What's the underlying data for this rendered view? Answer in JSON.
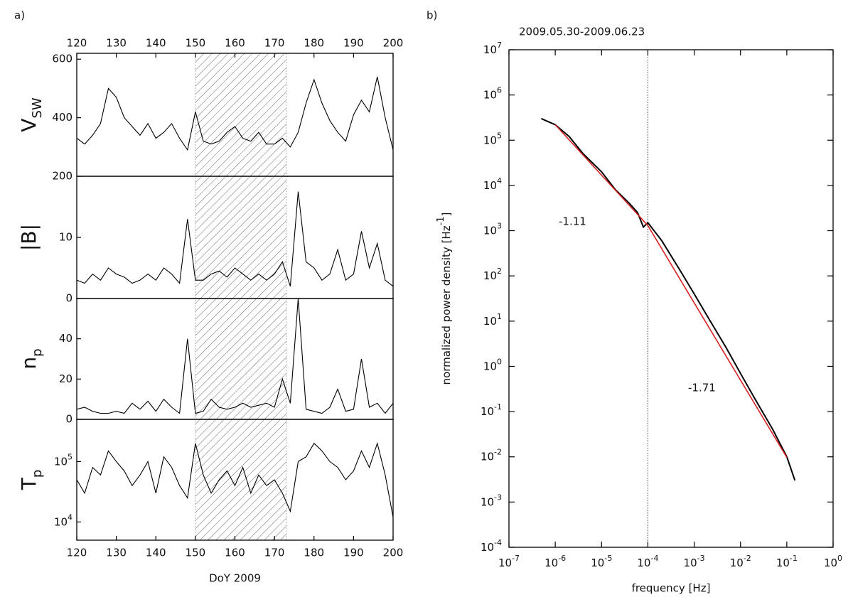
{
  "chart_data": [
    {
      "type": "line",
      "panel_label": "a)",
      "ylabel": "V",
      "ylabel_sub": "SW",
      "xtick_side": "top",
      "xlim": [
        120,
        200
      ],
      "xticks": [
        120,
        130,
        140,
        150,
        160,
        170,
        180,
        190,
        200
      ],
      "ylim": [
        200,
        620
      ],
      "yticks": [
        200,
        400,
        600
      ],
      "log_y": false,
      "span": [
        150,
        173
      ],
      "x": [
        120,
        122,
        124,
        126,
        128,
        130,
        132,
        134,
        136,
        138,
        140,
        142,
        144,
        146,
        148,
        150,
        152,
        154,
        156,
        158,
        160,
        162,
        164,
        166,
        168,
        170,
        172,
        174,
        176,
        178,
        180,
        182,
        184,
        186,
        188,
        190,
        192,
        194,
        196,
        198,
        200
      ],
      "series": [
        {
          "color": "#000000",
          "values": [
            330,
            310,
            340,
            380,
            500,
            470,
            400,
            370,
            340,
            380,
            330,
            350,
            380,
            330,
            290,
            420,
            320,
            310,
            320,
            350,
            370,
            330,
            320,
            350,
            310,
            310,
            330,
            300,
            350,
            450,
            530,
            450,
            390,
            350,
            320,
            410,
            460,
            420,
            540,
            400,
            290
          ]
        }
      ]
    },
    {
      "type": "line",
      "ylabel": "|B|",
      "xlim": [
        120,
        200
      ],
      "ylim": [
        0,
        20
      ],
      "yticks": [
        0,
        10
      ],
      "log_y": false,
      "span": [
        150,
        173
      ],
      "x": [
        120,
        122,
        124,
        126,
        128,
        130,
        132,
        134,
        136,
        138,
        140,
        142,
        144,
        146,
        148,
        150,
        152,
        154,
        156,
        158,
        160,
        162,
        164,
        166,
        168,
        170,
        172,
        174,
        176,
        178,
        180,
        182,
        184,
        186,
        188,
        190,
        192,
        194,
        196,
        198,
        200
      ],
      "series": [
        {
          "color": "#000000",
          "values": [
            3,
            2.5,
            4,
            3,
            5,
            4,
            3.5,
            2.5,
            3,
            4,
            3,
            5,
            4,
            2.5,
            13,
            3,
            3,
            4,
            4.5,
            3.5,
            5,
            4,
            3,
            4,
            3,
            4,
            6,
            2,
            17.5,
            6,
            5,
            3,
            4,
            8,
            3,
            4,
            11,
            5,
            9,
            3,
            2
          ]
        }
      ]
    },
    {
      "type": "line",
      "ylabel": "n",
      "ylabel_sub": "p",
      "xlim": [
        120,
        200
      ],
      "ylim": [
        0,
        60
      ],
      "yticks": [
        0,
        20,
        40
      ],
      "log_y": false,
      "span": [
        150,
        173
      ],
      "x": [
        120,
        122,
        124,
        126,
        128,
        130,
        132,
        134,
        136,
        138,
        140,
        142,
        144,
        146,
        148,
        150,
        152,
        154,
        156,
        158,
        160,
        162,
        164,
        166,
        168,
        170,
        172,
        174,
        176,
        178,
        180,
        182,
        184,
        186,
        188,
        190,
        192,
        194,
        196,
        198,
        200
      ],
      "series": [
        {
          "color": "#000000",
          "values": [
            5,
            6,
            4,
            3,
            3,
            4,
            3,
            8,
            5,
            9,
            4,
            10,
            6,
            3,
            40,
            3,
            4,
            10,
            6,
            5,
            6,
            8,
            6,
            7,
            8,
            6,
            20,
            8,
            60,
            5,
            4,
            3,
            6,
            15,
            4,
            5,
            30,
            6,
            8,
            3,
            8
          ]
        }
      ]
    },
    {
      "type": "line",
      "ylabel": "T",
      "ylabel_sub": "p",
      "xlabel": "DoY 2009",
      "xtick_side": "bottom",
      "xlim": [
        120,
        200
      ],
      "xticks": [
        120,
        130,
        140,
        150,
        160,
        170,
        180,
        190,
        200
      ],
      "ylim": [
        5000,
        500000
      ],
      "yticks": [
        {
          "value": 10000,
          "label": "10",
          "exp": "4"
        },
        {
          "value": 100000,
          "label": "10",
          "exp": "5"
        }
      ],
      "log_y": true,
      "span": [
        150,
        173
      ],
      "x": [
        120,
        122,
        124,
        126,
        128,
        130,
        132,
        134,
        136,
        138,
        140,
        142,
        144,
        146,
        148,
        150,
        152,
        154,
        156,
        158,
        160,
        162,
        164,
        166,
        168,
        170,
        172,
        174,
        176,
        178,
        180,
        182,
        184,
        186,
        188,
        190,
        192,
        194,
        196,
        198,
        200
      ],
      "series": [
        {
          "color": "#000000",
          "values": [
            50000,
            30000,
            80000,
            60000,
            150000,
            100000,
            70000,
            40000,
            60000,
            100000,
            30000,
            120000,
            80000,
            40000,
            25000,
            200000,
            60000,
            30000,
            50000,
            70000,
            40000,
            80000,
            30000,
            60000,
            40000,
            50000,
            30000,
            15000,
            100000,
            120000,
            200000,
            150000,
            100000,
            80000,
            50000,
            70000,
            150000,
            80000,
            200000,
            60000,
            12000
          ]
        }
      ]
    },
    {
      "type": "loglog",
      "panel_label": "b)",
      "title": "2009.05.30-2009.06.23",
      "xlabel": "frequency [Hz]",
      "ylabel": "normalized power density [Hz",
      "ylabel_sup": "-1",
      "ylabel_end": "]",
      "log_x": true,
      "log_y": true,
      "xlim": [
        1e-07,
        1
      ],
      "ylim": [
        0.0001,
        10000000.0
      ],
      "xticks": [
        {
          "value": 1e-07,
          "label": "10",
          "exp": "-7"
        },
        {
          "value": 1e-06,
          "label": "10",
          "exp": "-6"
        },
        {
          "value": 1e-05,
          "label": "10",
          "exp": "-5"
        },
        {
          "value": 0.0001,
          "label": "10",
          "exp": "-4"
        },
        {
          "value": 0.001,
          "label": "10",
          "exp": "-3"
        },
        {
          "value": 0.01,
          "label": "10",
          "exp": "-2"
        },
        {
          "value": 0.1,
          "label": "10",
          "exp": "-1"
        },
        {
          "value": 1,
          "label": "10",
          "exp": "0"
        }
      ],
      "yticks": [
        {
          "value": 0.0001,
          "label": "10",
          "exp": "-4"
        },
        {
          "value": 0.001,
          "label": "10",
          "exp": "-3"
        },
        {
          "value": 0.01,
          "label": "10",
          "exp": "-2"
        },
        {
          "value": 0.1,
          "label": "10",
          "exp": "-1"
        },
        {
          "value": 1,
          "label": "10",
          "exp": "0"
        },
        {
          "value": 10,
          "label": "10",
          "exp": "1"
        },
        {
          "value": 100,
          "label": "10",
          "exp": "2"
        },
        {
          "value": 1000,
          "label": "10",
          "exp": "3"
        },
        {
          "value": 10000,
          "label": "10",
          "exp": "4"
        },
        {
          "value": 100000,
          "label": "10",
          "exp": "5"
        },
        {
          "value": 1000000,
          "label": "10",
          "exp": "6"
        },
        {
          "value": 10000000,
          "label": "10",
          "exp": "7"
        }
      ],
      "vline": 0.0001,
      "annotations": [
        "-1.11",
        "-1.71"
      ],
      "series": [
        {
          "color": "#000000",
          "x": [
            5e-07,
            1e-06,
            2e-06,
            4e-06,
            1e-05,
            2e-05,
            4e-05,
            6e-05,
            8e-05,
            0.0001,
            0.0002,
            0.0005,
            0.001,
            0.002,
            0.005,
            0.01,
            0.02,
            0.05,
            0.1,
            0.15
          ],
          "values": [
            300000,
            220000,
            120000,
            50000,
            20000,
            8000,
            4000,
            2500,
            1200,
            1500,
            600,
            130,
            40,
            12,
            2.5,
            0.7,
            0.2,
            0.04,
            0.01,
            0.003
          ]
        },
        {
          "color": "#d62020",
          "x": [
            1e-06,
            0.0001,
            0.1
          ],
          "values": [
            220000,
            1300,
            0.0097
          ]
        }
      ]
    }
  ]
}
